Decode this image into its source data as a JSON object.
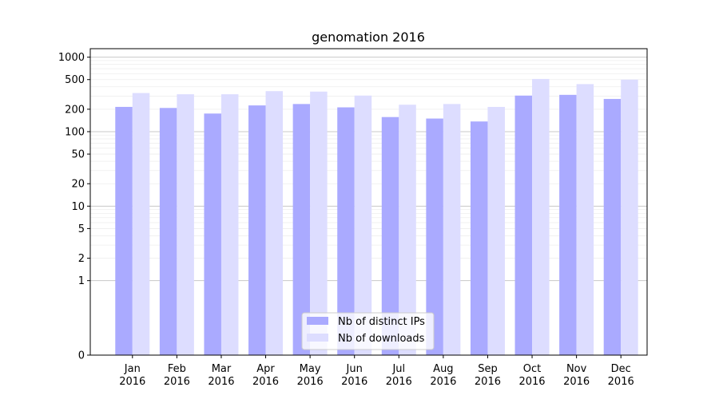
{
  "chart_data": {
    "type": "bar",
    "title": "genomation 2016",
    "xlabel": "",
    "ylabel": "",
    "yscale": "symlog",
    "ylim": [
      0,
      1300
    ],
    "yticks": [
      0,
      1,
      2,
      5,
      10,
      20,
      50,
      100,
      200,
      500,
      1000
    ],
    "ytick_labels": [
      "0",
      "1",
      "2",
      "5",
      "10",
      "20",
      "50",
      "100",
      "200",
      "500",
      "1000"
    ],
    "categories": [
      [
        "Jan",
        "2016"
      ],
      [
        "Feb",
        "2016"
      ],
      [
        "Mar",
        "2016"
      ],
      [
        "Apr",
        "2016"
      ],
      [
        "May",
        "2016"
      ],
      [
        "Jun",
        "2016"
      ],
      [
        "Jul",
        "2016"
      ],
      [
        "Aug",
        "2016"
      ],
      [
        "Sep",
        "2016"
      ],
      [
        "Oct",
        "2016"
      ],
      [
        "Nov",
        "2016"
      ],
      [
        "Dec",
        "2016"
      ]
    ],
    "series": [
      {
        "name": "Nb of distinct IPs",
        "color": "#aaaaff",
        "values": [
          215,
          208,
          175,
          225,
          235,
          212,
          157,
          150,
          137,
          305,
          312,
          275
        ]
      },
      {
        "name": "Nb of downloads",
        "color": "#ddddff",
        "values": [
          330,
          318,
          318,
          350,
          345,
          305,
          230,
          235,
          215,
          510,
          435,
          500
        ]
      }
    ],
    "grid": true,
    "legend_position": "bottom-center"
  }
}
